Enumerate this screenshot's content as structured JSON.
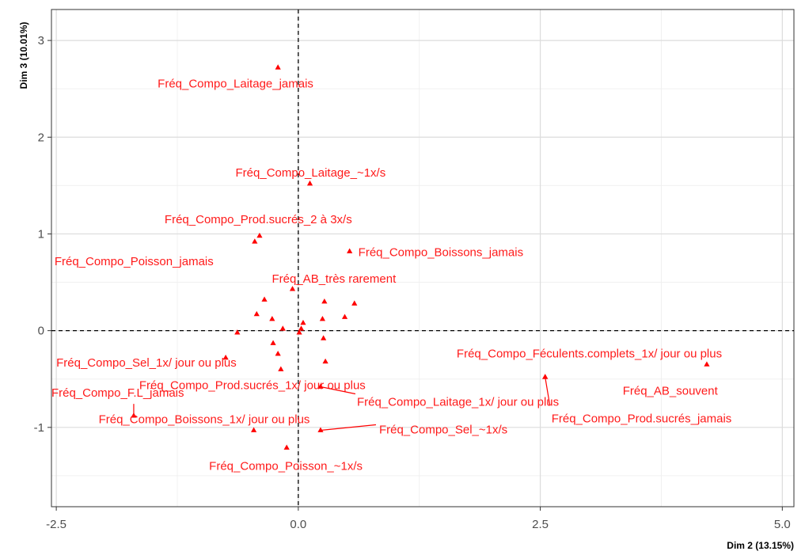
{
  "chart_data": {
    "type": "scatter",
    "xlabel": "Dim 2 (13.15%)",
    "ylabel": "Dim 3 (10.01%)",
    "xlim": [
      -2.55,
      5.12
    ],
    "ylim": [
      -1.82,
      3.32
    ],
    "xticks": [
      -2.5,
      0.0,
      2.5,
      5.0
    ],
    "xtick_labels": [
      "-2.5",
      "0.0",
      "2.5",
      "5.0"
    ],
    "yticks": [
      -1,
      0,
      1,
      2,
      3
    ],
    "ytick_labels": [
      "-1",
      "0",
      "1",
      "2",
      "3"
    ],
    "grid": true,
    "marker": "triangle",
    "color": "#ff0000",
    "labeled_points": [
      {
        "x": -0.21,
        "y": 2.72,
        "label": "Fréq_Compo_Laitage_jamais"
      },
      {
        "x": 0.12,
        "y": 1.52,
        "label": "Fréq_Compo_Laitage_~1x/s"
      },
      {
        "x": -0.4,
        "y": 0.98,
        "label": "Fréq_Compo_Prod.sucrés_2 à 3x/s"
      },
      {
        "x": -0.45,
        "y": 0.92,
        "label": "Fréq_Compo_Poisson_jamais"
      },
      {
        "x": 0.53,
        "y": 0.82,
        "label": "Fréq_Compo_Boissons_jamais"
      },
      {
        "x": -0.06,
        "y": 0.43,
        "label": "Fréq_AB_très rarement"
      },
      {
        "x": 4.22,
        "y": -0.35,
        "label": "Fréq_Compo_Féculents.complets_1x/ jour ou plus"
      },
      {
        "x": 2.55,
        "y": -0.48,
        "label": "Fréq_AB_souvent"
      },
      {
        "x": 2.55,
        "y": -0.48,
        "label": "Fréq_Compo_Prod.sucrés_jamais"
      },
      {
        "x": -0.75,
        "y": -0.28,
        "label": "Fréq_Compo_Sel_1x/ jour ou plus"
      },
      {
        "x": -0.18,
        "y": -0.4,
        "label": "Fréq_Compo_Prod.sucrés_1x/ jour ou plus"
      },
      {
        "x": 0.23,
        "y": -0.58,
        "label": "Fréq_Compo_Laitage_1x/ jour ou plus"
      },
      {
        "x": -1.7,
        "y": -0.88,
        "label": "Fréq_Compo_F.L_jamais"
      },
      {
        "x": -0.46,
        "y": -1.03,
        "label": "Fréq_Compo_Boissons_1x/ jour ou plus"
      },
      {
        "x": 0.23,
        "y": -1.03,
        "label": "Fréq_Compo_Sel_~1x/s"
      },
      {
        "x": -0.12,
        "y": -1.21,
        "label": "Fréq_Compo_Poisson_~1x/s"
      }
    ],
    "unlabeled_points": [
      {
        "x": -0.35,
        "y": 0.32
      },
      {
        "x": 0.27,
        "y": 0.3
      },
      {
        "x": 0.58,
        "y": 0.28
      },
      {
        "x": -0.43,
        "y": 0.17
      },
      {
        "x": -0.27,
        "y": 0.12
      },
      {
        "x": 0.25,
        "y": 0.12
      },
      {
        "x": 0.48,
        "y": 0.14
      },
      {
        "x": 0.05,
        "y": 0.08
      },
      {
        "x": -0.16,
        "y": 0.02
      },
      {
        "x": 0.03,
        "y": 0.02
      },
      {
        "x": 0.01,
        "y": -0.02
      },
      {
        "x": -0.63,
        "y": -0.02
      },
      {
        "x": -0.26,
        "y": -0.13
      },
      {
        "x": 0.26,
        "y": -0.08
      },
      {
        "x": -0.21,
        "y": -0.24
      },
      {
        "x": 0.28,
        "y": -0.32
      }
    ]
  }
}
